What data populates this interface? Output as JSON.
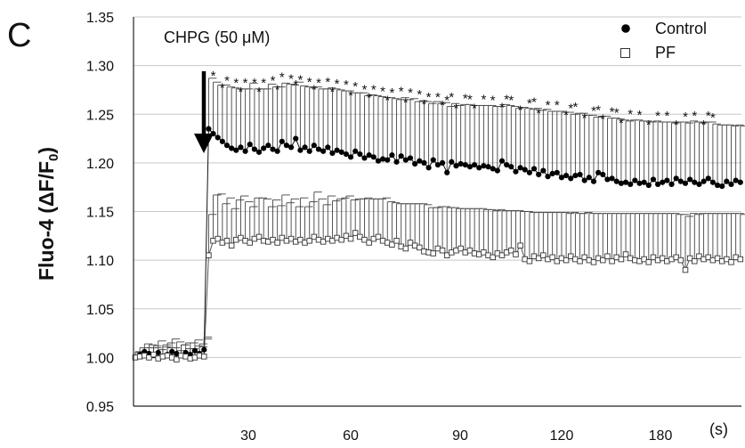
{
  "panel_label": "C",
  "chart_data": {
    "type": "line",
    "ylabel_main": "Fluo-4 (ΔF/F",
    "ylabel_sub": "0",
    "ylabel_close": ")",
    "x_unit": "(s)",
    "ylim": [
      0.95,
      1.35
    ],
    "yticks": [
      "0.95",
      "1.00",
      "1.05",
      "1.10",
      "1.15",
      "1.20",
      "1.25",
      "1.30",
      "1.35"
    ],
    "xticks": [
      "30",
      "60",
      "90",
      "120",
      "180"
    ],
    "grid": "horizontal",
    "legend_position": "top-right",
    "annotation": "CHPG (50 μM)",
    "significance_marker": "*",
    "series": [
      {
        "name": "Control",
        "marker": "filled-circle",
        "values": [
          1.0,
          1.003,
          1.006,
          1.004,
          1.002,
          1.005,
          1.001,
          1.003,
          1.006,
          1.004,
          1.002,
          1.005,
          1.003,
          1.007,
          1.004,
          1.008,
          1.235,
          1.23,
          1.226,
          1.222,
          1.218,
          1.215,
          1.213,
          1.216,
          1.212,
          1.219,
          1.214,
          1.211,
          1.215,
          1.218,
          1.214,
          1.212,
          1.222,
          1.218,
          1.216,
          1.225,
          1.213,
          1.216,
          1.212,
          1.218,
          1.214,
          1.212,
          1.216,
          1.21,
          1.213,
          1.211,
          1.209,
          1.206,
          1.212,
          1.209,
          1.205,
          1.208,
          1.206,
          1.202,
          1.204,
          1.203,
          1.208,
          1.201,
          1.207,
          1.203,
          1.205,
          1.199,
          1.202,
          1.2,
          1.195,
          1.203,
          1.198,
          1.2,
          1.19,
          1.201,
          1.197,
          1.199,
          1.198,
          1.196,
          1.198,
          1.195,
          1.197,
          1.196,
          1.194,
          1.192,
          1.202,
          1.198,
          1.196,
          1.191,
          1.195,
          1.193,
          1.19,
          1.194,
          1.188,
          1.192,
          1.186,
          1.189,
          1.19,
          1.185,
          1.187,
          1.184,
          1.187,
          1.188,
          1.182,
          1.185,
          1.181,
          1.19,
          1.188,
          1.183,
          1.184,
          1.181,
          1.179,
          1.18,
          1.178,
          1.182,
          1.179,
          1.18,
          1.177,
          1.183,
          1.178,
          1.18,
          1.182,
          1.178,
          1.184,
          1.181,
          1.179,
          1.183,
          1.18,
          1.178,
          1.181,
          1.184,
          1.18,
          1.177,
          1.176,
          1.181,
          1.178,
          1.182,
          1.18
        ],
        "errors": [
          0.005,
          0.007,
          0.008,
          0.009,
          0.01,
          0.012,
          0.01,
          0.012,
          0.013,
          0.012,
          0.011,
          0.01,
          0.012,
          0.011,
          0.01,
          0.013,
          0.052,
          0.053,
          0.054,
          0.058,
          0.06,
          0.062,
          0.063,
          0.06,
          0.064,
          0.063,
          0.062,
          0.065,
          0.061,
          0.063,
          0.064,
          0.066,
          0.06,
          0.063,
          0.064,
          0.058,
          0.066,
          0.062,
          0.065,
          0.06,
          0.062,
          0.064,
          0.061,
          0.066,
          0.062,
          0.063,
          0.065,
          0.066,
          0.06,
          0.063,
          0.064,
          0.062,
          0.063,
          0.066,
          0.063,
          0.064,
          0.058,
          0.064,
          0.06,
          0.062,
          0.061,
          0.064,
          0.062,
          0.063,
          0.066,
          0.06,
          0.063,
          0.062,
          0.068,
          0.06,
          0.062,
          0.061,
          0.062,
          0.063,
          0.061,
          0.064,
          0.062,
          0.063,
          0.064,
          0.066,
          0.058,
          0.061,
          0.062,
          0.065,
          0.062,
          0.063,
          0.065,
          0.062,
          0.066,
          0.063,
          0.067,
          0.064,
          0.063,
          0.067,
          0.065,
          0.066,
          0.064,
          0.063,
          0.067,
          0.064,
          0.066,
          0.058,
          0.06,
          0.063,
          0.062,
          0.064,
          0.065,
          0.063,
          0.066,
          0.062,
          0.064,
          0.063,
          0.065,
          0.06,
          0.064,
          0.062,
          0.06,
          0.063,
          0.058,
          0.061,
          0.062,
          0.06,
          0.062,
          0.063,
          0.061,
          0.058,
          0.06,
          0.062,
          0.063,
          0.058,
          0.06,
          0.057,
          0.058
        ]
      },
      {
        "name": "PF",
        "marker": "open-square",
        "values": [
          1.0,
          1.001,
          1.002,
          1.0,
          1.003,
          0.999,
          1.001,
          1.002,
          1.0,
          0.998,
          1.002,
          1.001,
          0.999,
          1.0,
          1.002,
          1.001,
          1.105,
          1.12,
          1.122,
          1.118,
          1.12,
          1.115,
          1.121,
          1.123,
          1.12,
          1.118,
          1.122,
          1.124,
          1.12,
          1.119,
          1.121,
          1.118,
          1.123,
          1.12,
          1.122,
          1.119,
          1.121,
          1.118,
          1.12,
          1.124,
          1.121,
          1.119,
          1.122,
          1.12,
          1.123,
          1.121,
          1.125,
          1.122,
          1.128,
          1.124,
          1.121,
          1.118,
          1.122,
          1.124,
          1.12,
          1.118,
          1.116,
          1.12,
          1.114,
          1.112,
          1.118,
          1.115,
          1.113,
          1.109,
          1.108,
          1.107,
          1.112,
          1.11,
          1.105,
          1.108,
          1.11,
          1.112,
          1.108,
          1.11,
          1.107,
          1.106,
          1.108,
          1.105,
          1.103,
          1.107,
          1.105,
          1.108,
          1.11,
          1.106,
          1.115,
          1.101,
          1.099,
          1.104,
          1.102,
          1.105,
          1.101,
          1.103,
          1.099,
          1.102,
          1.1,
          1.104,
          1.101,
          1.099,
          1.103,
          1.1,
          1.098,
          1.102,
          1.1,
          1.104,
          1.099,
          1.103,
          1.101,
          1.106,
          1.102,
          1.1,
          1.099,
          1.101,
          1.098,
          1.103,
          1.1,
          1.102,
          1.099,
          1.101,
          1.103,
          1.1,
          1.09,
          1.102,
          1.099,
          1.104,
          1.101,
          1.103,
          1.1,
          1.102,
          1.099,
          1.101,
          1.098,
          1.103,
          1.101
        ],
        "errors": [
          0.006,
          0.005,
          0.008,
          0.01,
          0.007,
          0.009,
          0.012,
          0.008,
          0.01,
          0.009,
          0.011,
          0.008,
          0.01,
          0.012,
          0.009,
          0.018,
          0.042,
          0.047,
          0.046,
          0.04,
          0.044,
          0.038,
          0.041,
          0.043,
          0.04,
          0.037,
          0.042,
          0.04,
          0.043,
          0.036,
          0.041,
          0.038,
          0.044,
          0.039,
          0.041,
          0.036,
          0.043,
          0.037,
          0.04,
          0.046,
          0.042,
          0.038,
          0.044,
          0.041,
          0.04,
          0.043,
          0.041,
          0.04,
          0.035,
          0.039,
          0.043,
          0.045,
          0.041,
          0.039,
          0.044,
          0.042,
          0.043,
          0.038,
          0.044,
          0.046,
          0.04,
          0.043,
          0.045,
          0.048,
          0.046,
          0.047,
          0.043,
          0.045,
          0.049,
          0.046,
          0.043,
          0.041,
          0.045,
          0.043,
          0.046,
          0.047,
          0.044,
          0.047,
          0.048,
          0.045,
          0.046,
          0.043,
          0.041,
          0.045,
          0.035,
          0.049,
          0.05,
          0.045,
          0.047,
          0.044,
          0.048,
          0.046,
          0.05,
          0.047,
          0.048,
          0.045,
          0.047,
          0.049,
          0.046,
          0.048,
          0.05,
          0.046,
          0.048,
          0.044,
          0.049,
          0.045,
          0.047,
          0.042,
          0.046,
          0.048,
          0.049,
          0.047,
          0.05,
          0.045,
          0.048,
          0.046,
          0.049,
          0.047,
          0.044,
          0.047,
          0.055,
          0.046,
          0.048,
          0.044,
          0.047,
          0.045,
          0.048,
          0.046,
          0.049,
          0.047,
          0.05,
          0.045,
          0.046
        ]
      }
    ],
    "significance_points": [
      17,
      19,
      20,
      22,
      23,
      24,
      26,
      27,
      28,
      30,
      31,
      32,
      34,
      35,
      36,
      38,
      39,
      40,
      42,
      43,
      44,
      46,
      47,
      48,
      50,
      51,
      52,
      54,
      55,
      56,
      58,
      59,
      60,
      62,
      63,
      64,
      66,
      67,
      68,
      69,
      70,
      72,
      73,
      74,
      76,
      78,
      80,
      81,
      82,
      84,
      86,
      87,
      88,
      90,
      92,
      94,
      95,
      96,
      98,
      100,
      101,
      102,
      104,
      105,
      106,
      108,
      110,
      112,
      114,
      116,
      118,
      120,
      122,
      124,
      125,
      126
    ]
  }
}
